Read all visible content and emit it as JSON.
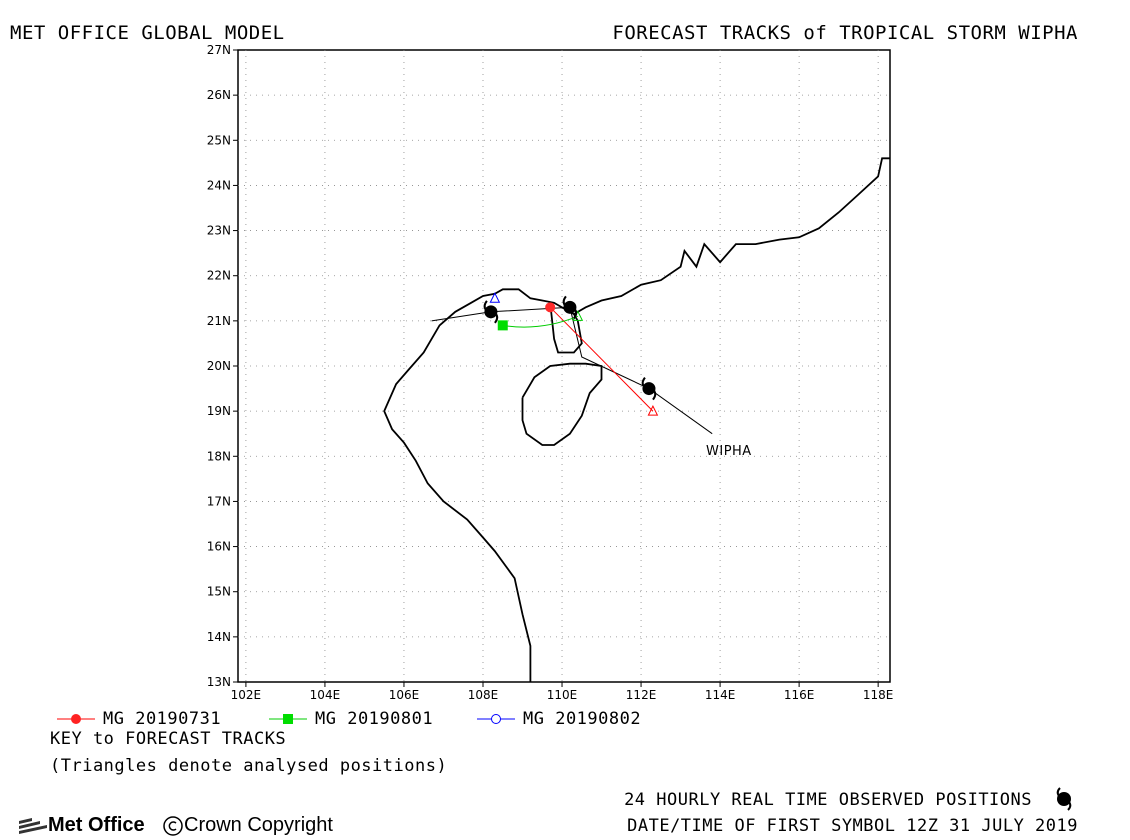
{
  "header": {
    "left_title": "MET OFFICE GLOBAL MODEL",
    "right_title": "FORECAST TRACKS of TROPICAL STORM WIPHA"
  },
  "map": {
    "lon_range": [
      101.8,
      118.3
    ],
    "lat_range": [
      13,
      27
    ],
    "x_tick_labels": [
      "102E",
      "104E",
      "106E",
      "108E",
      "110E",
      "112E",
      "114E",
      "116E",
      "118E"
    ],
    "x_tick_values": [
      102,
      104,
      106,
      108,
      110,
      112,
      114,
      116,
      118
    ],
    "y_tick_labels": [
      "13N",
      "14N",
      "15N",
      "16N",
      "17N",
      "18N",
      "19N",
      "20N",
      "21N",
      "22N",
      "23N",
      "24N",
      "25N",
      "26N",
      "27N"
    ],
    "y_tick_values": [
      13,
      14,
      15,
      16,
      17,
      18,
      19,
      20,
      21,
      22,
      23,
      24,
      25,
      26,
      27
    ],
    "grid": true,
    "storm_label": "WIPHA",
    "colors": {
      "track_0731": "#ff0000",
      "track_0801": "#00cc00",
      "track_0802": "#0000ff",
      "observed": "#000000"
    }
  },
  "tracks": {
    "observed_positions": [
      [
        112.2,
        19.5
      ],
      [
        110.2,
        21.3
      ],
      [
        108.2,
        21.2
      ]
    ],
    "observed_line": [
      [
        113.8,
        18.5
      ],
      [
        112.2,
        19.5
      ],
      [
        110.5,
        20.2
      ],
      [
        110.2,
        21.3
      ],
      [
        108.2,
        21.2
      ],
      [
        106.7,
        21.0
      ]
    ],
    "forecasts": [
      {
        "key": "MG 20190731",
        "analysed": [
          112.3,
          19.0
        ],
        "forecast": [
          [
            109.7,
            21.3
          ]
        ]
      },
      {
        "key": "MG 20190801",
        "analysed": [
          110.4,
          21.1
        ],
        "forecast": [
          [
            108.5,
            20.9
          ]
        ]
      },
      {
        "key": "MG 20190802",
        "analysed": [
          108.3,
          21.5
        ],
        "forecast": []
      }
    ]
  },
  "legend": {
    "item_1": "MG 20190731",
    "item_2": "MG 20190801",
    "item_3": "MG 20190802"
  },
  "footer": {
    "key_title": "KEY to FORECAST TRACKS",
    "key_note": "(Triangles denote analysed positions)",
    "observed_text": "24 HOURLY REAL TIME OBSERVED POSITIONS",
    "datetime_text": "DATE/TIME OF FIRST SYMBOL 12Z 31 JULY 2019",
    "logo_text": "Met Office",
    "copyright_text": "Crown Copyright"
  }
}
